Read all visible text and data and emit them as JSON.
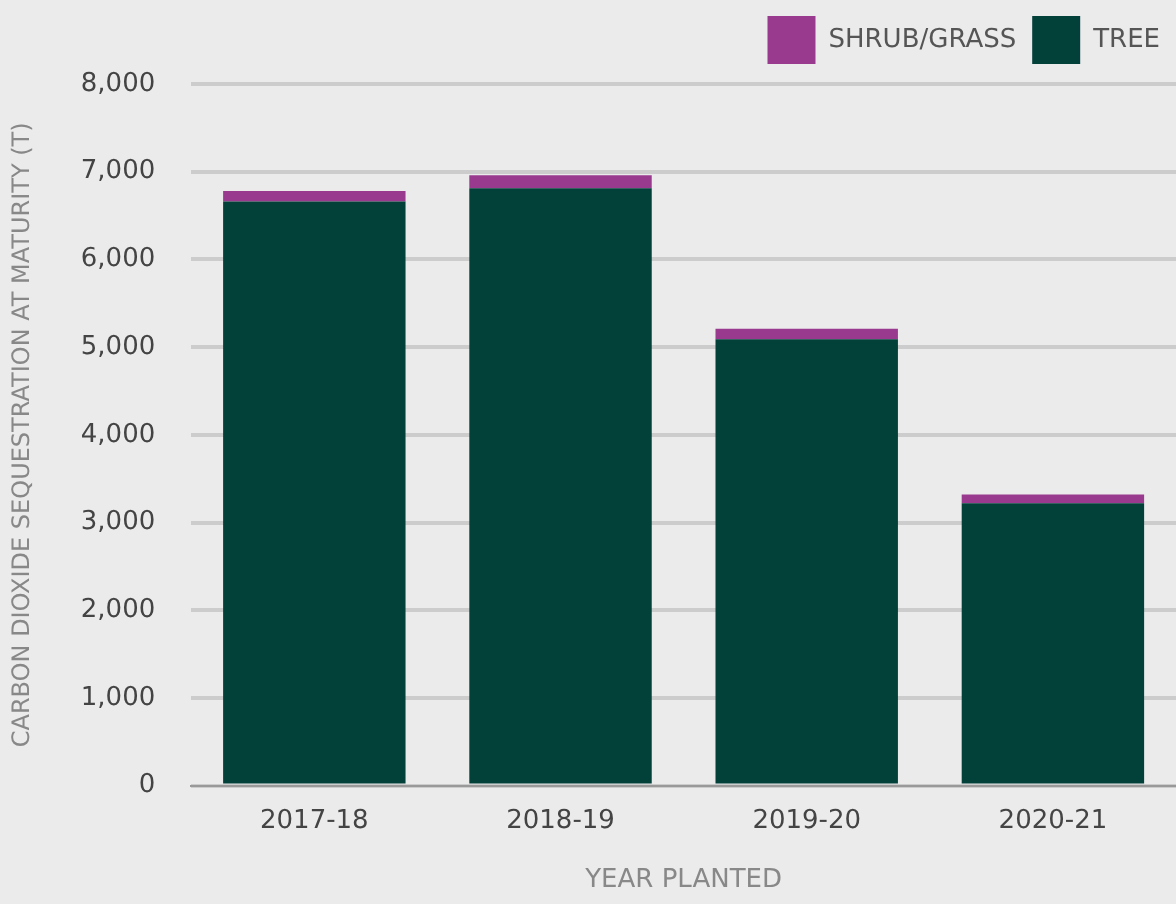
{
  "chart_data": {
    "type": "bar",
    "xlabel": "YEAR PLANTED",
    "ylabel": "CARBON DIOXIDE SEQUESTRATION AT MATURITY (T)",
    "categories": [
      "2017-18",
      "2018-19",
      "2019-20",
      "2020-21"
    ],
    "series": [
      {
        "name": "TREE",
        "color": "#02403a",
        "values": [
          6660,
          6810,
          5090,
          3220
        ]
      },
      {
        "name": "SHRUB/GRASS",
        "color": "#9a3a8f",
        "values": [
          120,
          150,
          120,
          100
        ]
      }
    ],
    "stacked": true,
    "ylim": [
      0,
      8000
    ],
    "yticks": [
      0,
      {
        "value": 1000,
        "label": "1,000"
      },
      {
        "value": 2000,
        "label": "2,000"
      },
      {
        "value": 3000,
        "label": "3,000"
      },
      {
        "value": 4000,
        "label": "4,000"
      },
      {
        "value": 5000,
        "label": "5,000"
      },
      {
        "value": 6000,
        "label": "6,000"
      },
      {
        "value": 7000,
        "label": "7,000"
      },
      {
        "value": 8000,
        "label": "8,000"
      }
    ],
    "grid": "y",
    "legend": "top right"
  }
}
